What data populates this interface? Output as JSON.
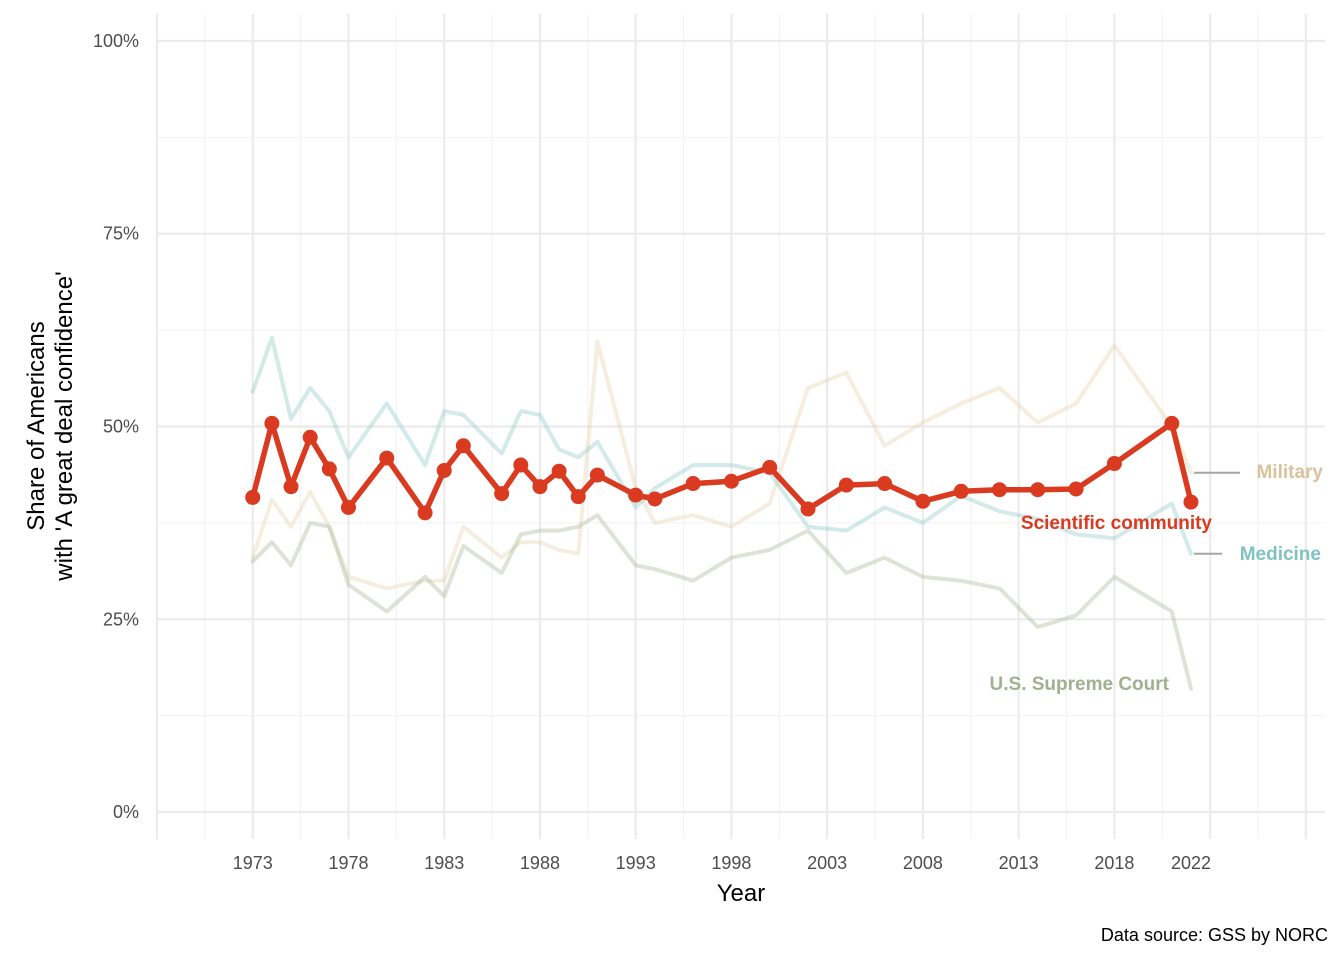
{
  "chart_data": {
    "type": "line",
    "xlabel": "Year",
    "ylabel_line1": "Share of Americans",
    "ylabel_line2": "with 'A great deal confidence'",
    "caption": "Data source: GSS by NORC",
    "x_ticks": [
      1973,
      1978,
      1983,
      1988,
      1993,
      1998,
      2003,
      2008,
      2013,
      2018,
      2022
    ],
    "y_ticks": [
      0,
      25,
      50,
      75,
      100
    ],
    "y_tick_labels": [
      "0%",
      "25%",
      "50%",
      "75%",
      "100%"
    ],
    "xlim": [
      1968,
      2029
    ],
    "ylim": [
      -3.5,
      103.5
    ],
    "grid": true,
    "series": [
      {
        "name": "Military",
        "color": "#e3cfa3",
        "opacity": 0.35,
        "highlight": false,
        "x": [
          1973,
          1974,
          1975,
          1976,
          1977,
          1978,
          1980,
          1982,
          1983,
          1984,
          1986,
          1987,
          1988,
          1989,
          1990,
          1991,
          1993,
          1994,
          1996,
          1998,
          2000,
          2002,
          2004,
          2006,
          2008,
          2010,
          2012,
          2014,
          2016,
          2018,
          2021,
          2022
        ],
        "values": [
          33,
          40.5,
          37,
          41.5,
          37,
          30.5,
          29,
          30,
          30,
          37,
          33,
          35,
          35,
          34,
          33.5,
          61,
          42,
          37.5,
          38.5,
          37,
          40,
          55,
          57,
          47.5,
          50.5,
          53,
          55,
          50.5,
          53,
          60.5,
          50,
          44
        ]
      },
      {
        "name": "Medicine",
        "color": "#7fc2c1",
        "opacity": 0.35,
        "highlight": false,
        "x": [
          1973,
          1974,
          1975,
          1976,
          1977,
          1978,
          1980,
          1982,
          1983,
          1984,
          1986,
          1987,
          1988,
          1989,
          1990,
          1991,
          1993,
          1994,
          1996,
          1998,
          2000,
          2002,
          2004,
          2006,
          2008,
          2010,
          2012,
          2014,
          2016,
          2018,
          2021,
          2022
        ],
        "values": [
          54.5,
          61.5,
          51,
          55,
          52,
          46,
          53,
          45,
          52,
          51.5,
          46.5,
          52,
          51.5,
          47,
          46,
          48,
          39.5,
          42,
          45,
          45,
          44,
          37,
          36.5,
          39.5,
          37.5,
          41,
          39,
          38,
          36,
          35.5,
          40,
          33.5
        ]
      },
      {
        "name": "U.S. Supreme Court",
        "color": "#a1b08f",
        "opacity": 0.35,
        "highlight": false,
        "x": [
          1973,
          1974,
          1975,
          1976,
          1977,
          1978,
          1980,
          1982,
          1983,
          1984,
          1986,
          1987,
          1988,
          1989,
          1990,
          1991,
          1993,
          1994,
          1996,
          1998,
          2000,
          2002,
          2004,
          2006,
          2008,
          2010,
          2012,
          2014,
          2016,
          2018,
          2021,
          2022
        ],
        "values": [
          32.5,
          35,
          32,
          37.5,
          37,
          29.5,
          26,
          30.5,
          28,
          34.5,
          31,
          36,
          36.5,
          36.5,
          37,
          38.5,
          32,
          31.5,
          30,
          33,
          34,
          36.5,
          31,
          33,
          30.5,
          30,
          29,
          24,
          25.5,
          30.5,
          26,
          16
        ]
      },
      {
        "name": "Scientific community",
        "color": "#da3a20",
        "opacity": 1,
        "highlight": true,
        "x": [
          1973,
          1974,
          1975,
          1976,
          1977,
          1978,
          1980,
          1982,
          1983,
          1984,
          1986,
          1987,
          1988,
          1989,
          1990,
          1991,
          1993,
          1994,
          1996,
          1998,
          2000,
          2002,
          2004,
          2006,
          2008,
          2010,
          2012,
          2014,
          2016,
          2018,
          2021,
          2022
        ],
        "values": [
          40.8,
          50.4,
          42.2,
          48.6,
          44.5,
          39.5,
          45.9,
          38.8,
          44.3,
          47.5,
          41.3,
          45,
          42.2,
          44.2,
          40.9,
          43.7,
          41.1,
          40.6,
          42.6,
          42.9,
          44.7,
          39.3,
          42.4,
          42.6,
          40.3,
          41.6,
          41.8,
          41.8,
          41.9,
          45.2,
          50.4,
          40.2
        ]
      }
    ],
    "labels": [
      {
        "text": "Military",
        "series": "Military"
      },
      {
        "text": "Medicine",
        "series": "Medicine"
      },
      {
        "text": "Scientific community",
        "series": "Scientific community"
      },
      {
        "text": "U.S. Supreme Court",
        "series": "U.S. Supreme Court"
      }
    ]
  }
}
